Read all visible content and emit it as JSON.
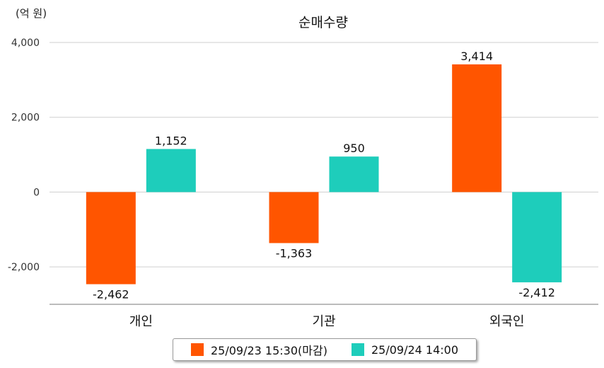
{
  "chart_data": {
    "type": "bar",
    "title": "순매수량",
    "unit_label": "(억 원)",
    "categories": [
      "개인",
      "기관",
      "외국인"
    ],
    "series": [
      {
        "name": "25/09/23 15:30(마감)",
        "color": "#ff5500",
        "values": [
          -2462,
          -1363,
          3414
        ],
        "labels": [
          "-2,462",
          "-1,363",
          "3,414"
        ]
      },
      {
        "name": "25/09/24 14:00",
        "color": "#1ecdbb",
        "values": [
          1152,
          950,
          -2412
        ],
        "labels": [
          "1,152",
          "950",
          "-2,412"
        ]
      }
    ],
    "ylim": [
      -3000,
      4000
    ],
    "yticks": [
      4000,
      2000,
      0,
      -2000
    ],
    "ytick_labels": [
      "4,000",
      "2,000",
      "0",
      "-2,000"
    ],
    "grid": true,
    "legend_position": "bottom-center"
  }
}
